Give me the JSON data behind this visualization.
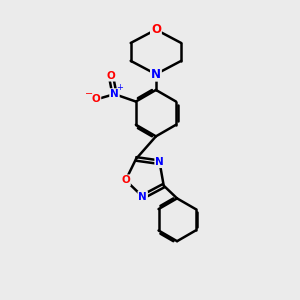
{
  "bg_color": "#ebebeb",
  "bond_color": "#000000",
  "N_color": "#0000ff",
  "O_color": "#ff0000",
  "bond_width": 1.8,
  "figsize": [
    3.0,
    3.0
  ],
  "dpi": 100,
  "xlim": [
    0,
    10
  ],
  "ylim": [
    0,
    10
  ]
}
